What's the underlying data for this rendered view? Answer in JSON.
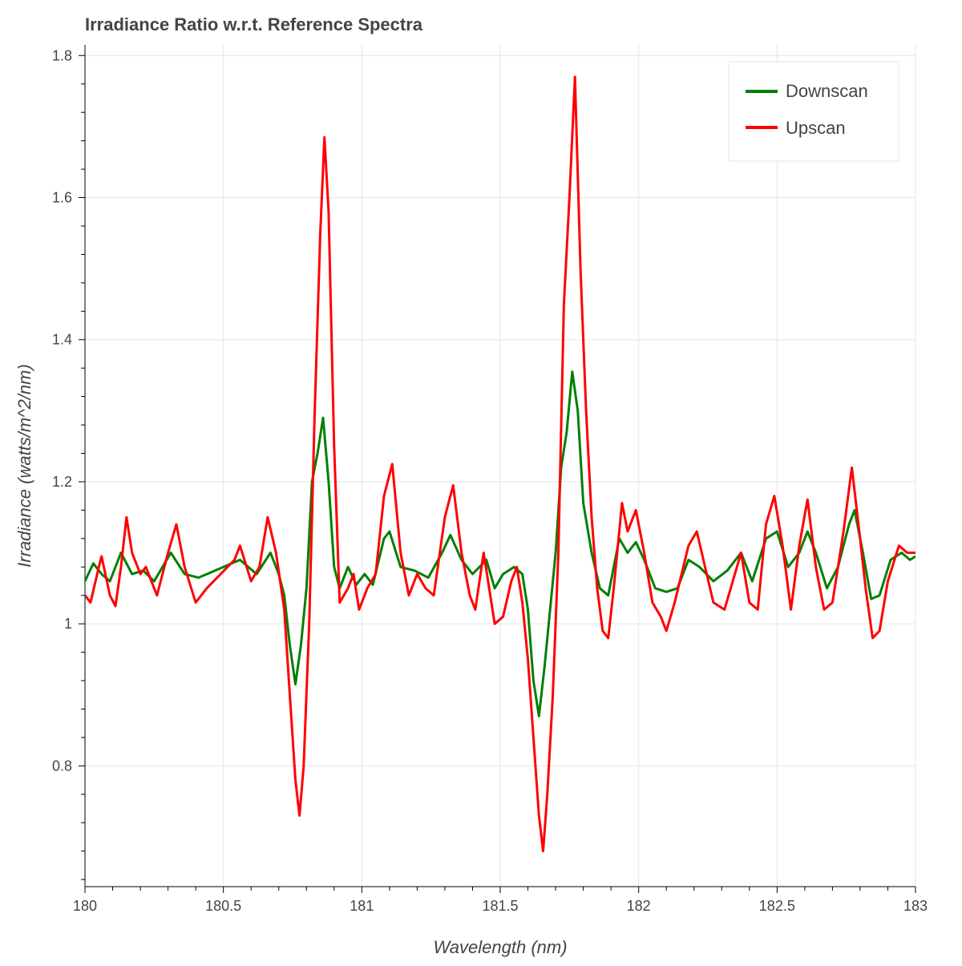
{
  "chart_data": {
    "type": "line",
    "title": "Irradiance Ratio w.r.t. Reference Spectra",
    "xlabel": "Wavelength (nm)",
    "ylabel": "Irradiance (watts/m^2/nm)",
    "xlim": [
      180,
      183
    ],
    "ylim": [
      0.63,
      1.815
    ],
    "x_ticks": [
      180,
      180.5,
      181,
      181.5,
      182,
      182.5,
      183
    ],
    "x_tick_labels": [
      "180",
      "180.5",
      "181",
      "181.5",
      "182",
      "182.5",
      "183"
    ],
    "y_ticks": [
      0.8,
      1.0,
      1.2,
      1.4,
      1.6,
      1.8
    ],
    "y_tick_labels": [
      "0.8",
      "1",
      "1.2",
      "1.4",
      "1.6",
      "1.8"
    ],
    "grid": true,
    "legend_position": "top-right",
    "series": [
      {
        "name": "Downscan",
        "color": "#008000",
        "points": [
          [
            180.0,
            1.06
          ],
          [
            180.03,
            1.085
          ],
          [
            180.06,
            1.07
          ],
          [
            180.09,
            1.06
          ],
          [
            180.13,
            1.1
          ],
          [
            180.17,
            1.07
          ],
          [
            180.21,
            1.075
          ],
          [
            180.25,
            1.06
          ],
          [
            180.31,
            1.1
          ],
          [
            180.36,
            1.07
          ],
          [
            180.41,
            1.065
          ],
          [
            180.47,
            1.075
          ],
          [
            180.53,
            1.085
          ],
          [
            180.56,
            1.09
          ],
          [
            180.62,
            1.07
          ],
          [
            180.67,
            1.1
          ],
          [
            180.7,
            1.07
          ],
          [
            180.72,
            1.04
          ],
          [
            180.74,
            0.97
          ],
          [
            180.76,
            0.915
          ],
          [
            180.78,
            0.97
          ],
          [
            180.8,
            1.05
          ],
          [
            180.82,
            1.2
          ],
          [
            180.84,
            1.24
          ],
          [
            180.86,
            1.29
          ],
          [
            180.88,
            1.2
          ],
          [
            180.9,
            1.08
          ],
          [
            180.92,
            1.05
          ],
          [
            180.95,
            1.08
          ],
          [
            180.98,
            1.055
          ],
          [
            181.01,
            1.07
          ],
          [
            181.04,
            1.055
          ],
          [
            181.08,
            1.12
          ],
          [
            181.1,
            1.13
          ],
          [
            181.14,
            1.08
          ],
          [
            181.19,
            1.075
          ],
          [
            181.24,
            1.065
          ],
          [
            181.29,
            1.1
          ],
          [
            181.32,
            1.125
          ],
          [
            181.36,
            1.09
          ],
          [
            181.4,
            1.07
          ],
          [
            181.45,
            1.09
          ],
          [
            181.48,
            1.05
          ],
          [
            181.51,
            1.07
          ],
          [
            181.55,
            1.08
          ],
          [
            181.58,
            1.07
          ],
          [
            181.6,
            1.02
          ],
          [
            181.62,
            0.92
          ],
          [
            181.64,
            0.87
          ],
          [
            181.66,
            0.94
          ],
          [
            181.68,
            1.02
          ],
          [
            181.7,
            1.1
          ],
          [
            181.72,
            1.22
          ],
          [
            181.74,
            1.27
          ],
          [
            181.76,
            1.355
          ],
          [
            181.78,
            1.3
          ],
          [
            181.8,
            1.17
          ],
          [
            181.83,
            1.1
          ],
          [
            181.86,
            1.05
          ],
          [
            181.89,
            1.04
          ],
          [
            181.93,
            1.12
          ],
          [
            181.96,
            1.1
          ],
          [
            181.99,
            1.115
          ],
          [
            182.02,
            1.09
          ],
          [
            182.06,
            1.05
          ],
          [
            182.1,
            1.045
          ],
          [
            182.14,
            1.05
          ],
          [
            182.18,
            1.09
          ],
          [
            182.22,
            1.08
          ],
          [
            182.27,
            1.06
          ],
          [
            182.32,
            1.075
          ],
          [
            182.37,
            1.1
          ],
          [
            182.41,
            1.06
          ],
          [
            182.46,
            1.12
          ],
          [
            182.5,
            1.13
          ],
          [
            182.54,
            1.08
          ],
          [
            182.58,
            1.1
          ],
          [
            182.61,
            1.13
          ],
          [
            182.64,
            1.1
          ],
          [
            182.68,
            1.05
          ],
          [
            182.72,
            1.08
          ],
          [
            182.76,
            1.14
          ],
          [
            182.78,
            1.16
          ],
          [
            182.81,
            1.1
          ],
          [
            182.84,
            1.035
          ],
          [
            182.87,
            1.04
          ],
          [
            182.91,
            1.09
          ],
          [
            182.95,
            1.1
          ],
          [
            182.98,
            1.09
          ],
          [
            183.0,
            1.095
          ]
        ]
      },
      {
        "name": "Upscan",
        "color": "#ff0000",
        "points": [
          [
            180.0,
            1.04
          ],
          [
            180.02,
            1.03
          ],
          [
            180.05,
            1.08
          ],
          [
            180.06,
            1.095
          ],
          [
            180.09,
            1.04
          ],
          [
            180.11,
            1.025
          ],
          [
            180.13,
            1.08
          ],
          [
            180.15,
            1.15
          ],
          [
            180.17,
            1.1
          ],
          [
            180.2,
            1.07
          ],
          [
            180.22,
            1.08
          ],
          [
            180.26,
            1.04
          ],
          [
            180.3,
            1.1
          ],
          [
            180.33,
            1.14
          ],
          [
            180.36,
            1.08
          ],
          [
            180.4,
            1.03
          ],
          [
            180.44,
            1.05
          ],
          [
            180.49,
            1.07
          ],
          [
            180.54,
            1.09
          ],
          [
            180.56,
            1.11
          ],
          [
            180.6,
            1.06
          ],
          [
            180.63,
            1.08
          ],
          [
            180.66,
            1.15
          ],
          [
            180.69,
            1.1
          ],
          [
            180.72,
            1.02
          ],
          [
            180.74,
            0.9
          ],
          [
            180.76,
            0.78
          ],
          [
            180.775,
            0.73
          ],
          [
            180.79,
            0.8
          ],
          [
            180.81,
            1.0
          ],
          [
            180.83,
            1.3
          ],
          [
            180.85,
            1.55
          ],
          [
            180.865,
            1.685
          ],
          [
            180.88,
            1.58
          ],
          [
            180.9,
            1.25
          ],
          [
            180.92,
            1.03
          ],
          [
            180.95,
            1.05
          ],
          [
            180.97,
            1.07
          ],
          [
            180.99,
            1.02
          ],
          [
            181.02,
            1.05
          ],
          [
            181.05,
            1.07
          ],
          [
            181.08,
            1.18
          ],
          [
            181.11,
            1.225
          ],
          [
            181.14,
            1.1
          ],
          [
            181.17,
            1.04
          ],
          [
            181.2,
            1.07
          ],
          [
            181.23,
            1.05
          ],
          [
            181.26,
            1.04
          ],
          [
            181.3,
            1.15
          ],
          [
            181.33,
            1.195
          ],
          [
            181.36,
            1.1
          ],
          [
            181.39,
            1.04
          ],
          [
            181.41,
            1.02
          ],
          [
            181.44,
            1.1
          ],
          [
            181.48,
            1.0
          ],
          [
            181.51,
            1.01
          ],
          [
            181.54,
            1.06
          ],
          [
            181.56,
            1.08
          ],
          [
            181.58,
            1.03
          ],
          [
            181.6,
            0.95
          ],
          [
            181.62,
            0.84
          ],
          [
            181.64,
            0.73
          ],
          [
            181.655,
            0.68
          ],
          [
            181.67,
            0.76
          ],
          [
            181.69,
            0.9
          ],
          [
            181.71,
            1.1
          ],
          [
            181.73,
            1.45
          ],
          [
            181.75,
            1.6
          ],
          [
            181.77,
            1.77
          ],
          [
            181.79,
            1.5
          ],
          [
            181.81,
            1.3
          ],
          [
            181.83,
            1.15
          ],
          [
            181.85,
            1.05
          ],
          [
            181.87,
            0.99
          ],
          [
            181.89,
            0.98
          ],
          [
            181.91,
            1.05
          ],
          [
            181.94,
            1.17
          ],
          [
            181.96,
            1.13
          ],
          [
            181.99,
            1.16
          ],
          [
            182.02,
            1.1
          ],
          [
            182.05,
            1.03
          ],
          [
            182.08,
            1.01
          ],
          [
            182.1,
            0.99
          ],
          [
            182.13,
            1.03
          ],
          [
            182.18,
            1.11
          ],
          [
            182.21,
            1.13
          ],
          [
            182.24,
            1.08
          ],
          [
            182.27,
            1.03
          ],
          [
            182.31,
            1.02
          ],
          [
            182.34,
            1.06
          ],
          [
            182.37,
            1.1
          ],
          [
            182.4,
            1.03
          ],
          [
            182.43,
            1.02
          ],
          [
            182.46,
            1.14
          ],
          [
            182.49,
            1.18
          ],
          [
            182.52,
            1.11
          ],
          [
            182.55,
            1.02
          ],
          [
            182.58,
            1.11
          ],
          [
            182.61,
            1.175
          ],
          [
            182.64,
            1.08
          ],
          [
            182.67,
            1.02
          ],
          [
            182.7,
            1.03
          ],
          [
            182.74,
            1.13
          ],
          [
            182.77,
            1.22
          ],
          [
            182.8,
            1.12
          ],
          [
            182.82,
            1.05
          ],
          [
            182.845,
            0.98
          ],
          [
            182.87,
            0.99
          ],
          [
            182.9,
            1.06
          ],
          [
            182.94,
            1.11
          ],
          [
            182.97,
            1.1
          ],
          [
            183.0,
            1.1
          ]
        ]
      }
    ]
  }
}
